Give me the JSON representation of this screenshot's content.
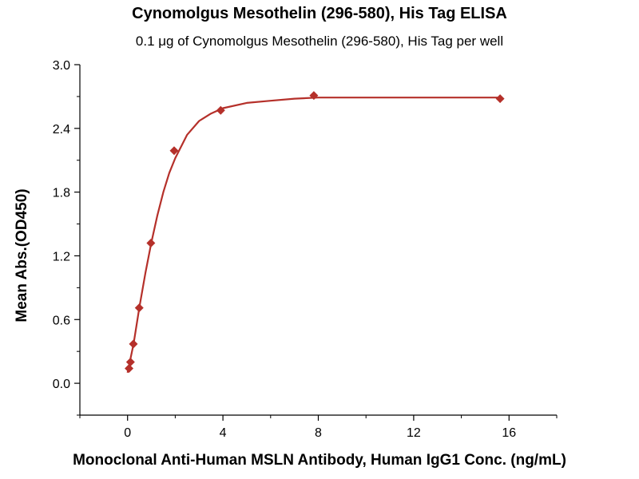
{
  "chart_data": {
    "type": "scatter",
    "title": "Cynomolgus Mesothelin (296-580), His Tag ELISA",
    "subtitle": "0.1 μg of Cynomolgus Mesothelin (296-580), His Tag per well",
    "xlabel": "Monoclonal Anti-Human MSLN Antibody, Human IgG1 Conc. (ng/mL)",
    "ylabel": "Mean Abs.(OD450)",
    "xlim": [
      -2,
      18
    ],
    "ylim": [
      -0.3,
      3.0
    ],
    "xticks": [
      0,
      4,
      8,
      12,
      16
    ],
    "yticks": [
      0.0,
      0.6,
      1.2,
      1.8,
      2.4,
      3.0
    ],
    "xtick_labels": [
      "0",
      "4",
      "8",
      "12",
      "16"
    ],
    "ytick_labels": [
      "0.0",
      "0.6",
      "1.2",
      "1.8",
      "2.4",
      "3.0"
    ],
    "grid": false,
    "color": "#b5302a",
    "series": [
      {
        "x": [
          0.061,
          0.122,
          0.244,
          0.488,
          0.977,
          1.953,
          3.906,
          7.813,
          15.625
        ],
        "y": [
          0.14,
          0.2,
          0.37,
          0.71,
          1.32,
          2.19,
          2.57,
          2.71,
          2.68
        ]
      }
    ],
    "fit_curve": {
      "x": [
        0,
        0.25,
        0.5,
        0.75,
        1,
        1.25,
        1.5,
        1.75,
        2,
        2.5,
        3,
        3.5,
        4,
        5,
        6,
        7,
        8,
        10,
        12,
        14,
        15.6
      ],
      "y": [
        0.1,
        0.37,
        0.72,
        1.04,
        1.33,
        1.58,
        1.8,
        1.98,
        2.12,
        2.34,
        2.47,
        2.54,
        2.59,
        2.64,
        2.66,
        2.68,
        2.69,
        2.69,
        2.69,
        2.69,
        2.69
      ]
    }
  }
}
